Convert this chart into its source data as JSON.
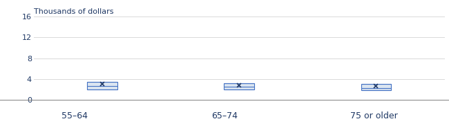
{
  "categories": [
    "55–64",
    "65–74",
    "75 or older"
  ],
  "ylabel": "Thousands of dollars",
  "ylim": [
    0,
    16
  ],
  "yticks": [
    0,
    4,
    8,
    12,
    16
  ],
  "box_data": [
    {
      "q1": 2.0,
      "median": 2.6,
      "q3": 3.5,
      "whisker_low": 2.0,
      "whisker_high": 3.5,
      "mean": 3.0
    },
    {
      "q1": 2.0,
      "median": 2.5,
      "q3": 3.2,
      "whisker_low": 2.0,
      "whisker_high": 3.2,
      "mean": 2.8
    },
    {
      "q1": 1.8,
      "median": 2.3,
      "q3": 3.0,
      "whisker_low": 1.8,
      "whisker_high": 3.0,
      "mean": 2.6
    }
  ],
  "box_color": "#4472c4",
  "box_face_color": "#dce6f1",
  "mean_color": "#1f3864",
  "plot_bg": "#ffffff",
  "footer_bg": "#c5d3e8",
  "grid_color": "#d9d9d9",
  "text_color": "#1f3864",
  "title_fontsize": 8,
  "tick_fontsize": 8,
  "category_fontsize": 9,
  "positions": [
    1,
    2,
    3
  ],
  "box_width": 0.22,
  "xlim": [
    0.5,
    3.5
  ]
}
